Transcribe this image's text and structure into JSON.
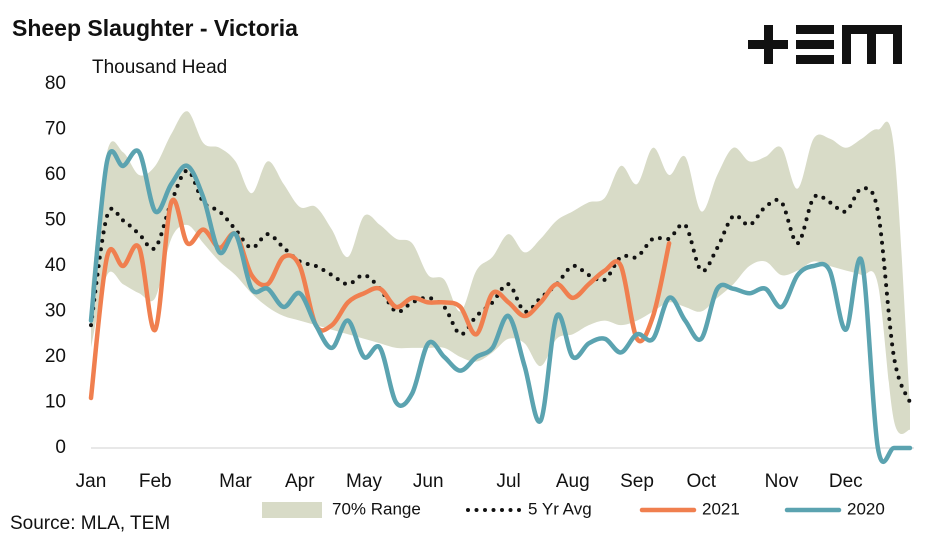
{
  "chart_data": {
    "type": "line",
    "title": "Sheep Slaughter - Victoria",
    "y_label": "Thousand Head",
    "source": "Source: MLA, TEM",
    "categories": [
      "Jan",
      null,
      null,
      null,
      "Feb",
      null,
      null,
      null,
      null,
      "Mar",
      null,
      null,
      null,
      "Apr",
      null,
      null,
      null,
      "May",
      null,
      null,
      null,
      "Jun",
      null,
      null,
      null,
      null,
      "Jul",
      null,
      null,
      null,
      "Aug",
      null,
      null,
      null,
      "Sep",
      null,
      null,
      null,
      "Oct",
      null,
      null,
      null,
      null,
      "Nov",
      null,
      null,
      null,
      "Dec",
      null,
      null,
      null,
      null
    ],
    "ylim": [
      0,
      80
    ],
    "yticks": [
      0,
      10,
      20,
      30,
      40,
      50,
      60,
      70,
      80
    ],
    "grid": false,
    "legend": "bottom",
    "series": [
      {
        "name": "70% Range",
        "style": "band",
        "color": "#d8dbc7",
        "high": [
          35,
          65,
          65,
          60,
          62,
          69,
          74,
          67,
          66,
          63,
          56,
          63,
          58,
          53,
          53,
          48,
          42,
          51,
          49,
          46,
          45,
          38,
          37,
          30,
          39,
          42,
          47,
          43,
          46,
          50,
          52,
          54,
          55,
          62,
          58,
          66,
          60,
          64,
          52,
          60,
          66,
          63,
          64,
          66,
          57,
          68,
          68,
          66,
          68,
          70,
          66,
          9
        ],
        "low": [
          22,
          38,
          36,
          34,
          33,
          46,
          49,
          45,
          41,
          38,
          34,
          31,
          29,
          28,
          27,
          26,
          25,
          24,
          23,
          22,
          22,
          22,
          22,
          20,
          19,
          21,
          24,
          23,
          18,
          24,
          25,
          27,
          28,
          27,
          28,
          30,
          32,
          31,
          30,
          33,
          36,
          40,
          41,
          38,
          39,
          41,
          40,
          39,
          38,
          36,
          6,
          4
        ]
      },
      {
        "name": "5 Yr Avg",
        "style": "dotted",
        "color": "#111111",
        "values": [
          27,
          51,
          50,
          47,
          44,
          54,
          61,
          54,
          52,
          48,
          44,
          47,
          44,
          41,
          40,
          38,
          36,
          38,
          35,
          30,
          32,
          33,
          31,
          25,
          29,
          32,
          36,
          30,
          33,
          36,
          40,
          38,
          37,
          42,
          42,
          46,
          46,
          49,
          39,
          44,
          51,
          49,
          53,
          54,
          45,
          55,
          54,
          52,
          57,
          52,
          20,
          10
        ]
      },
      {
        "name": "2021",
        "style": "line",
        "color": "#f07f4f",
        "values": [
          11,
          42,
          40,
          44,
          26,
          54,
          45,
          48,
          44,
          47,
          38,
          36,
          42,
          40,
          27,
          27,
          32,
          34,
          35,
          31,
          33,
          32,
          32,
          31,
          25,
          34,
          32,
          29,
          32,
          36,
          33,
          36,
          39,
          40,
          24,
          29,
          45,
          null,
          null,
          null,
          null,
          null,
          null,
          null,
          null,
          null,
          null,
          null,
          null,
          null,
          null,
          null
        ]
      },
      {
        "name": "2020",
        "style": "line",
        "color": "#5ba3b0",
        "values": [
          28,
          63,
          62,
          65,
          52,
          58,
          62,
          55,
          43,
          47,
          35,
          35,
          31,
          34,
          27,
          22,
          28,
          20,
          22,
          10,
          12,
          23,
          20,
          17,
          20,
          22,
          29,
          18,
          6,
          29,
          20,
          23,
          24,
          21,
          25,
          24,
          33,
          28,
          24,
          35,
          35,
          34,
          35,
          31,
          38,
          40,
          39,
          26,
          41,
          0,
          0,
          0
        ]
      }
    ]
  }
}
